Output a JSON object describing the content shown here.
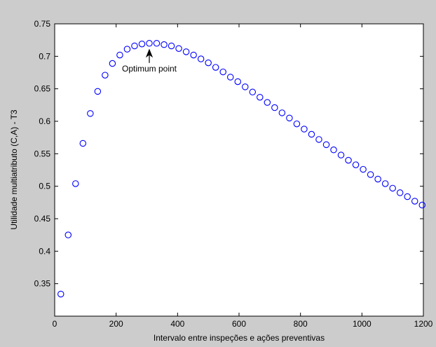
{
  "chart_data": {
    "type": "scatter",
    "title": "",
    "xlabel": "Intervalo entre inspeções e ações preventivas",
    "ylabel": "Utilidade multiatributo (C,A) - T3",
    "xlim": [
      0,
      1200
    ],
    "ylim": [
      0.3,
      0.75
    ],
    "x_ticks": [
      "0",
      "200",
      "400",
      "600",
      "800",
      "1000",
      "1200"
    ],
    "y_ticks": [
      "0.35",
      "0.4",
      "0.45",
      "0.5",
      "0.55",
      "0.6",
      "0.65",
      "0.7",
      "0.75"
    ],
    "grid": false,
    "marker": "circle",
    "series": [
      {
        "color": "#0000ff",
        "x": [
          20,
          44,
          68,
          92,
          116,
          140,
          164,
          188,
          212,
          236,
          260,
          284,
          308,
          332,
          356,
          380,
          404,
          428,
          452,
          476,
          500,
          524,
          548,
          572,
          596,
          620,
          644,
          668,
          692,
          716,
          740,
          764,
          788,
          812,
          836,
          860,
          884,
          908,
          932,
          956,
          980,
          1004,
          1028,
          1052,
          1076,
          1100,
          1124,
          1148,
          1172,
          1196
        ],
        "y": [
          0.334,
          0.425,
          0.504,
          0.566,
          0.612,
          0.646,
          0.671,
          0.689,
          0.702,
          0.711,
          0.716,
          0.719,
          0.72,
          0.72,
          0.718,
          0.716,
          0.712,
          0.707,
          0.702,
          0.696,
          0.69,
          0.683,
          0.676,
          0.668,
          0.661,
          0.653,
          0.645,
          0.637,
          0.629,
          0.621,
          0.613,
          0.605,
          0.596,
          0.588,
          0.58,
          0.572,
          0.564,
          0.556,
          0.548,
          0.54,
          0.533,
          0.526,
          0.518,
          0.511,
          0.504,
          0.497,
          0.49,
          0.484,
          0.477,
          0.471
        ]
      }
    ],
    "annotations": [
      {
        "text": "Optimum point",
        "x": 308,
        "y": 0.72
      }
    ]
  }
}
